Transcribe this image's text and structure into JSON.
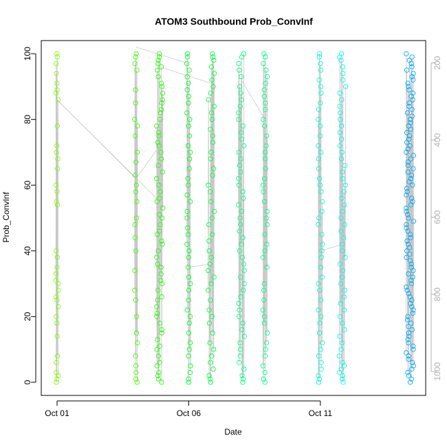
{
  "chart_data": {
    "type": "scatter",
    "title": "ATOM3 Southbound Prob_ConvInf",
    "xlabel": "Date",
    "ylabel": "Prob_ConvInf",
    "ylim": [
      -4,
      104
    ],
    "yticks": [
      0,
      20,
      40,
      60,
      80,
      100
    ],
    "xlim_days": [
      0.4,
      15.0
    ],
    "xtick_labels": [
      "Oct 01",
      "Oct 06",
      "Oct 11"
    ],
    "y2_ticks": [
      200,
      400,
      600,
      800,
      1000
    ],
    "y2lim": [
      1062,
      142
    ],
    "grid": false,
    "legend": "none",
    "point_color_note": "color varies by date: green to cyan to blue",
    "bursts": [
      {
        "date": "Oct 01",
        "color": "#80ff00",
        "values": [
          100,
          99,
          97,
          94,
          91,
          89,
          88,
          86,
          78,
          72,
          70,
          68,
          65,
          60,
          58,
          55,
          54,
          40,
          38,
          35,
          33,
          31,
          30,
          28,
          26,
          25,
          23,
          20,
          18,
          14,
          8,
          6,
          3,
          2,
          1,
          0
        ]
      },
      {
        "date": "Oct 04",
        "color": "#40ff00",
        "values": [
          100,
          99,
          97,
          95,
          89,
          85,
          80,
          78,
          75,
          70,
          67,
          63,
          60,
          58,
          55,
          50,
          48,
          44,
          40,
          34,
          28,
          25,
          20,
          15,
          12,
          8,
          5,
          3,
          1,
          0
        ]
      },
      {
        "date": "Oct 05",
        "color": "#20ff00",
        "values": [
          100,
          99,
          98,
          97,
          96,
          95,
          93,
          91,
          90,
          88,
          86,
          85,
          83,
          82,
          80,
          78,
          76,
          75,
          73,
          72,
          70,
          68,
          66,
          64,
          62,
          60,
          58,
          56,
          55,
          53,
          51,
          50,
          48,
          46,
          45,
          43,
          42,
          40,
          38,
          36,
          35,
          33,
          31,
          30,
          28,
          26,
          25,
          23,
          21,
          20,
          18,
          16,
          15,
          13,
          11,
          10,
          8,
          6,
          5,
          3,
          2,
          1,
          0
        ]
      },
      {
        "date": "Oct 06",
        "color": "#00ff20",
        "values": [
          100,
          99,
          97,
          95,
          93,
          91,
          89,
          87,
          85,
          82,
          80,
          78,
          75,
          72,
          70,
          68,
          65,
          62,
          60,
          57,
          55,
          52,
          50,
          47,
          45,
          42,
          40,
          38,
          35,
          32,
          30,
          28,
          25,
          22,
          20,
          18,
          15,
          12,
          10,
          8,
          5,
          3,
          1,
          0
        ]
      },
      {
        "date": "Oct 07",
        "color": "#00ff40",
        "values": [
          100,
          99,
          98,
          96,
          94,
          92,
          90,
          88,
          86,
          84,
          82,
          80,
          77,
          75,
          73,
          70,
          68,
          65,
          63,
          60,
          58,
          55,
          52,
          50,
          48,
          45,
          43,
          40,
          38,
          36,
          34,
          32,
          30,
          28,
          25,
          22,
          20,
          18,
          15,
          12,
          10,
          8,
          6,
          4,
          2,
          1,
          0
        ]
      },
      {
        "date": "Oct 08",
        "color": "#00ff80",
        "values": [
          100,
          99,
          97,
          95,
          93,
          90,
          88,
          86,
          84,
          82,
          80,
          78,
          76,
          74,
          72,
          70,
          68,
          66,
          64,
          62,
          60,
          58,
          56,
          54,
          52,
          50,
          48,
          46,
          44,
          42,
          40,
          38,
          36,
          34,
          32,
          30,
          28,
          26,
          24,
          22,
          20,
          18,
          16,
          14,
          12,
          10,
          8,
          6,
          4,
          2,
          1,
          0
        ]
      },
      {
        "date": "Oct 09",
        "color": "#00ff90",
        "values": [
          100,
          99,
          97,
          95,
          93,
          91,
          89,
          87,
          85,
          83,
          80,
          78,
          75,
          72,
          70,
          68,
          65,
          62,
          60,
          58,
          55,
          52,
          50,
          48,
          45,
          42,
          40,
          38,
          35,
          30,
          28,
          25,
          22,
          20,
          18,
          15,
          12,
          10,
          8,
          5,
          3,
          1,
          0
        ]
      },
      {
        "date": "Oct 11",
        "color": "#00ffd0",
        "values": [
          100,
          99,
          97,
          95,
          92,
          90,
          88,
          85,
          83,
          80,
          78,
          75,
          72,
          70,
          68,
          65,
          62,
          60,
          58,
          55,
          52,
          50,
          48,
          45,
          42,
          40,
          38,
          35,
          32,
          30,
          28,
          25,
          22,
          20,
          18,
          15,
          12,
          10,
          8,
          6,
          4,
          2,
          1,
          0
        ]
      },
      {
        "date": "Oct 12",
        "color": "#00f8f0",
        "values": [
          100,
          99,
          98,
          96,
          94,
          92,
          90,
          88,
          86,
          84,
          82,
          80,
          78,
          76,
          74,
          72,
          70,
          68,
          66,
          64,
          62,
          60,
          58,
          56,
          54,
          52,
          50,
          48,
          46,
          44,
          42,
          40,
          38,
          36,
          34,
          32,
          30,
          28,
          26,
          24,
          22,
          20,
          18,
          16,
          14,
          12,
          10,
          8,
          6,
          5,
          4,
          3,
          2,
          1,
          0
        ]
      },
      {
        "date": "Oct 14",
        "color": "#00a8f8",
        "values": [
          100,
          99,
          98,
          97,
          96,
          95,
          94,
          93,
          92,
          91,
          90,
          89,
          88,
          87,
          86,
          85,
          84,
          83,
          82,
          81,
          80,
          79,
          78,
          77,
          76,
          75,
          74,
          73,
          72,
          71,
          70,
          69,
          68,
          67,
          66,
          65,
          64,
          63,
          62,
          61,
          60,
          59,
          58,
          57,
          56,
          55,
          54,
          53,
          52,
          51,
          50,
          49,
          48,
          47,
          46,
          45,
          44,
          43,
          42,
          41,
          40,
          39,
          38,
          37,
          36,
          35,
          34,
          33,
          32,
          31,
          30,
          29,
          28,
          27,
          26,
          25,
          24,
          23,
          22,
          21,
          20,
          19,
          18,
          17,
          16,
          15,
          14,
          13,
          12,
          11,
          10,
          9,
          8,
          7,
          6,
          5,
          4,
          3,
          2,
          1,
          0
        ]
      }
    ]
  }
}
